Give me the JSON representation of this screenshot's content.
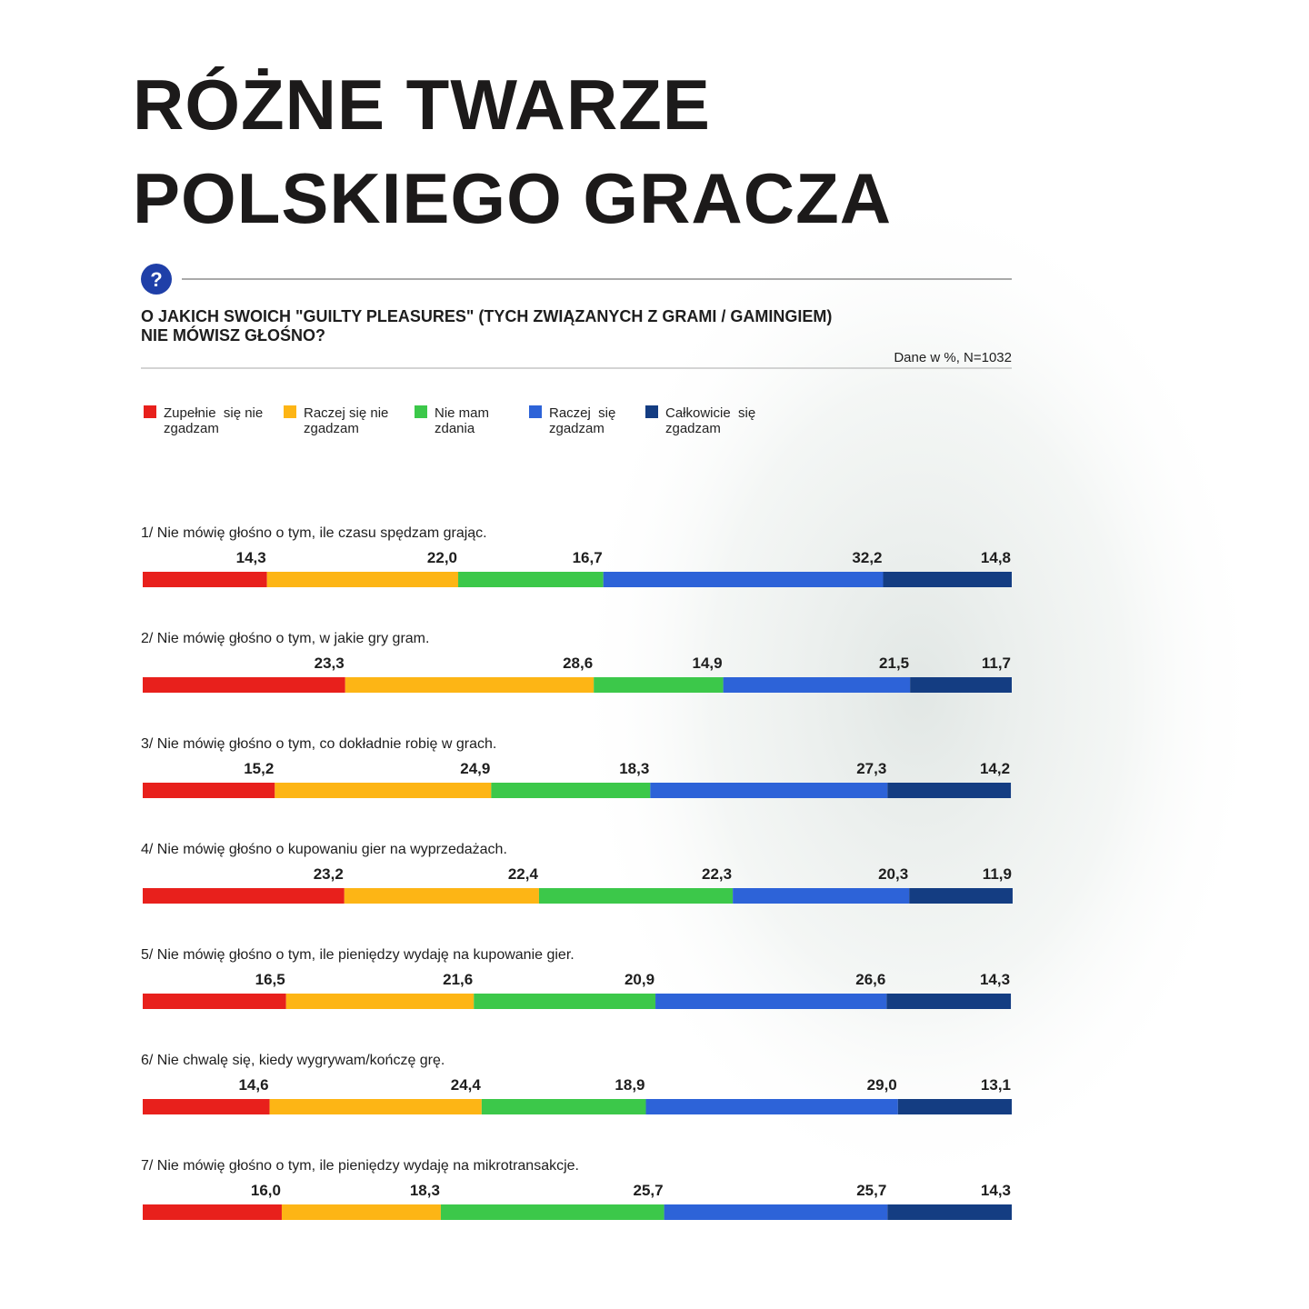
{
  "chart_data": {
    "type": "stacked-bar",
    "orientation": "horizontal",
    "title": [
      "RÓŻNE TWARZE",
      "POLSKIEGO GRACZA"
    ],
    "subtitle": [
      "O JAKICH SWOICH \"GUILTY PLEASURES\" (TYCH ZWIĄZANYCH Z GRAMI / GAMINGIEM)",
      "NIE MÓWISZ GŁOŚNO?"
    ],
    "note": "Dane w %, N=1032",
    "icon": "?",
    "categories": [
      "1/ Nie mówię głośno o tym, ile czasu spędzam grając.",
      "2/ Nie mówię głośno o tym, w jakie gry gram.",
      "3/ Nie mówię głośno o tym, co dokładnie robię w grach.",
      "4/ Nie mówię głośno o kupowaniu gier na wyprzedażach.",
      "5/ Nie mówię głośno o tym, ile pieniędzy wydaję na kupowanie gier.",
      "6/ Nie chwalę się, kiedy wygrywam/kończę grę.",
      "7/ Nie mówię głośno o tym, ile pieniędzy wydaję na mikrotransakcje."
    ],
    "xlim": [
      0,
      100
    ],
    "series": [
      {
        "name": "Zupełnie  się nie zgadzam",
        "color": "#e8201c",
        "values": [
          14.3,
          23.3,
          15.2,
          23.2,
          16.5,
          14.6,
          16.0
        ],
        "value_labels": [
          "14,3",
          "23,3",
          "15,2",
          "23,2",
          "16,5",
          "14,6",
          "16,0"
        ]
      },
      {
        "name": "Raczej się nie zgadzam",
        "color": "#fdb515",
        "values": [
          22.0,
          28.6,
          24.9,
          22.4,
          21.6,
          24.4,
          18.3
        ],
        "value_labels": [
          "22,0",
          "28,6",
          "24,9",
          "22,4",
          "21,6",
          "24,4",
          "18,3"
        ]
      },
      {
        "name": "Nie mam zdania",
        "color": "#3cc84a",
        "values": [
          16.7,
          14.9,
          18.3,
          22.3,
          20.9,
          18.9,
          25.7
        ],
        "value_labels": [
          "16,7",
          "14,9",
          "18,3",
          "22,3",
          "20,9",
          "18,9",
          "25,7"
        ]
      },
      {
        "name": "Raczej  się zgadzam",
        "color": "#2d63d8",
        "values": [
          32.2,
          21.5,
          27.3,
          20.3,
          26.6,
          29.0,
          25.7
        ],
        "value_labels": [
          "32,2",
          "21,5",
          "27,3",
          "20,3",
          "26,6",
          "29,0",
          "25,7"
        ]
      },
      {
        "name": "Całkowicie  się zgadzam",
        "color": "#143d82",
        "values": [
          14.8,
          11.7,
          14.2,
          11.9,
          14.3,
          13.1,
          14.3
        ],
        "value_labels": [
          "14,8",
          "11,7",
          "14,2",
          "11,9",
          "14,3",
          "13,1",
          "14,3"
        ]
      }
    ]
  }
}
